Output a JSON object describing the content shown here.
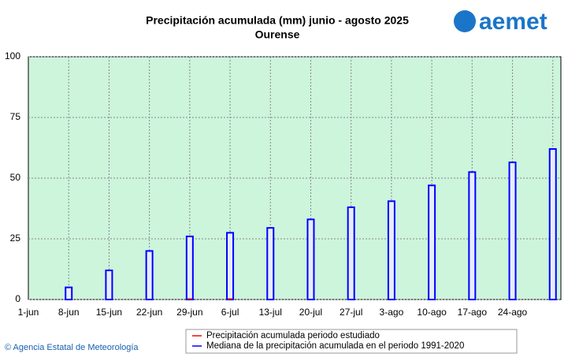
{
  "chart_data": {
    "type": "bar",
    "title": "Precipitación acumulada (mm) junio - agosto 2025",
    "subtitle": "Ourense",
    "logo": "aemet",
    "source": "© Agencia Estatal de Meteorología",
    "categories": [
      "1-jun",
      "8-jun",
      "15-jun",
      "22-jun",
      "29-jun",
      "6-jul",
      "13-jul",
      "20-jul",
      "27-jul",
      "3-ago",
      "10-ago",
      "17-ago",
      "24-ago",
      null
    ],
    "series": [
      {
        "name": "Precipitación acumulada periodo estudiado",
        "color": "#ff0000",
        "values": [
          0,
          0,
          0,
          0,
          0.5,
          0.5,
          0,
          0,
          0,
          0,
          0,
          0,
          0,
          0
        ]
      },
      {
        "name": "Mediana de la precipitación acumulada en el periodo 1991-2020",
        "color": "#0000ff",
        "values": [
          0,
          5,
          12,
          20,
          26,
          27.5,
          29.5,
          33,
          38,
          40.5,
          47,
          52.5,
          56.5,
          62
        ]
      }
    ],
    "ylim": [
      0,
      100
    ],
    "yticks": [
      0,
      25,
      50,
      75,
      100
    ],
    "grid": true
  }
}
